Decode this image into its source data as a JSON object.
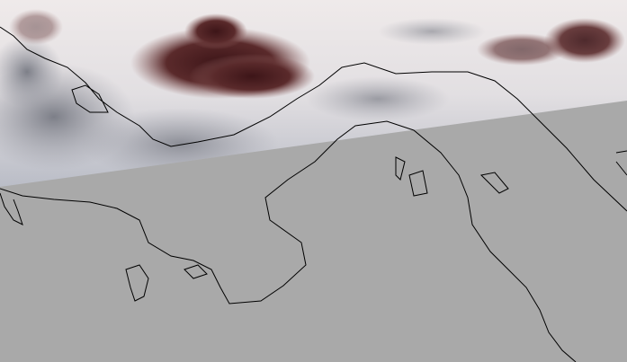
{
  "map": {
    "colors": {
      "nodata": "#a9a9a9",
      "cloud_bright": "#ece8e8",
      "cloud_gray": "#9a9ba2",
      "plume_dark": "#4a1c1e",
      "coastline": "#000000"
    },
    "layers": [
      "satellite-swath",
      "nodata-region",
      "coastline"
    ]
  }
}
